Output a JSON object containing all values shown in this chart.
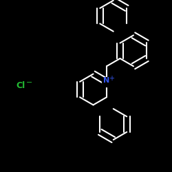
{
  "bg_color": "#000000",
  "bond_color": "#ffffff",
  "n_color": "#3355ee",
  "cl_color": "#22bb33",
  "bond_width": 1.5,
  "dbo": 0.018,
  "figsize": [
    2.5,
    2.5
  ],
  "dpi": 100
}
